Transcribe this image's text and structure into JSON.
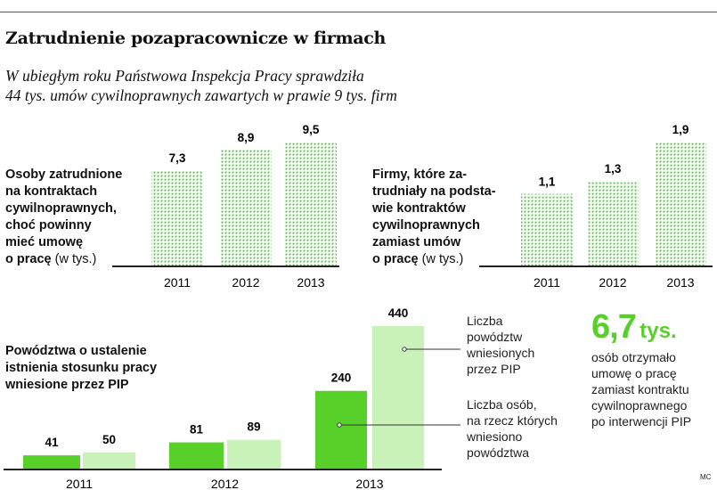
{
  "title": "Zatrudnienie pozapracownicze w firmach",
  "subtitle_lines": [
    "W ubiegłym roku Państwowa Inspekcja Pracy sprawdziła",
    "44 tys. umów cywilnoprawnych zawartych w prawie 9 tys. firm"
  ],
  "chart1": {
    "label_lines": [
      "Osoby zatrudnione",
      "na kontraktach",
      "cywilnoprawnych,",
      "choć powinny",
      "mieć umowę"
    ],
    "label_last_bold": "o pracę",
    "label_unit": "(w tys.)"
  },
  "chart2": {
    "label_lines": [
      "Firmy, które za-",
      "trudniały na podsta-",
      "wie kontraktów",
      "cywilnoprawnych",
      "zamiast umów"
    ],
    "label_last_bold": "o pracę",
    "label_unit": "(w tys.)"
  },
  "chart3": {
    "label_lines": [
      "Powództwa o ustalenie",
      "istnienia stosunku pracy",
      "wniesione przez PIP"
    ],
    "legend_light": [
      "Liczba",
      "powództw",
      "wniesionych",
      "przez PIP"
    ],
    "legend_dark": [
      "Liczba osób,",
      "na rzecz których",
      "wniesiono",
      "powództwa"
    ]
  },
  "highlight": {
    "value": "6,7",
    "unit": "tys.",
    "desc_lines": [
      "osób otrzymało",
      "umowę o pracę",
      "zamiast kontraktu",
      "cywilnoprawnego",
      "po interwencji PIP"
    ]
  },
  "credit": "MC",
  "colors": {
    "dark_green": "#57d12a",
    "light_green": "#c8f2b8",
    "dot_green": "#4cc43a"
  },
  "chart_data": [
    {
      "type": "bar",
      "title": "Osoby zatrudnione na kontraktach cywilnoprawnych, choć powinny mieć umowę o pracę (w tys.)",
      "categories": [
        "2011",
        "2012",
        "2013"
      ],
      "values": [
        7.3,
        8.9,
        9.5
      ],
      "value_labels": [
        "7,3",
        "8,9",
        "9,5"
      ],
      "ylim": [
        0,
        9.5
      ]
    },
    {
      "type": "bar",
      "title": "Firmy, które zatrudniały na podstawie kontraktów cywilnoprawnych zamiast umów o pracę (w tys.)",
      "categories": [
        "2011",
        "2012",
        "2013"
      ],
      "values": [
        1.1,
        1.3,
        1.9
      ],
      "value_labels": [
        "1,1",
        "1,3",
        "1,9"
      ],
      "ylim": [
        0,
        1.9
      ]
    },
    {
      "type": "bar",
      "title": "Powództwa o ustalenie istnienia stosunku pracy wniesione przez PIP",
      "categories": [
        "2011",
        "2012",
        "2013"
      ],
      "series": [
        {
          "name": "Liczba osób, na rzecz których wniesiono powództwa",
          "values": [
            41,
            81,
            240
          ]
        },
        {
          "name": "Liczba powództw wniesionych przez PIP",
          "values": [
            50,
            89,
            440
          ]
        }
      ],
      "ylim": [
        0,
        440
      ]
    }
  ]
}
